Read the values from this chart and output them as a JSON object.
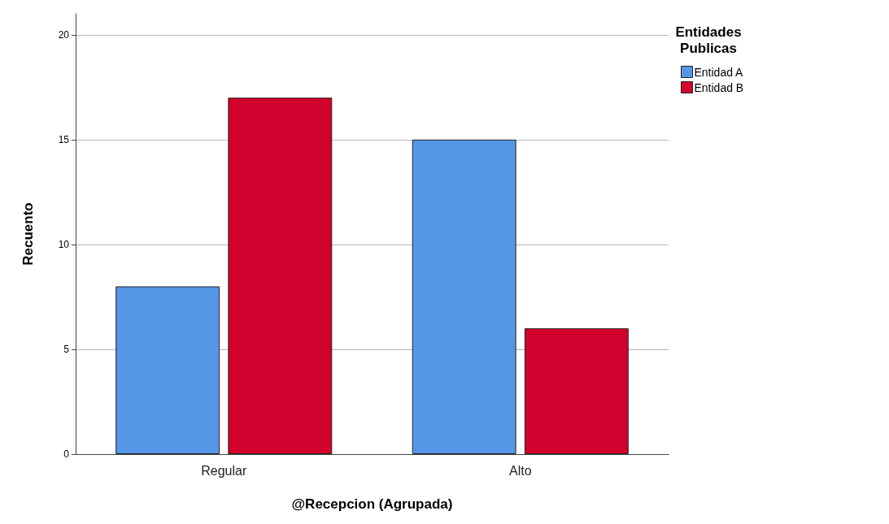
{
  "chart_data": {
    "type": "bar",
    "xlabel": "@Recepcion (Agrupada)",
    "ylabel": "Recuento",
    "legend_title": "Entidades\nPublicas",
    "categories": [
      "Regular",
      "Alto"
    ],
    "series": [
      {
        "name": "Entidad A",
        "color": "#5596e6",
        "values": [
          8,
          15
        ]
      },
      {
        "name": "Entidad B",
        "color": "#d2002c",
        "values": [
          17,
          6
        ]
      }
    ],
    "ylim": [
      0,
      21
    ],
    "yticks": [
      0,
      5,
      10,
      15,
      20
    ],
    "grid": "y",
    "legend": "top right"
  }
}
